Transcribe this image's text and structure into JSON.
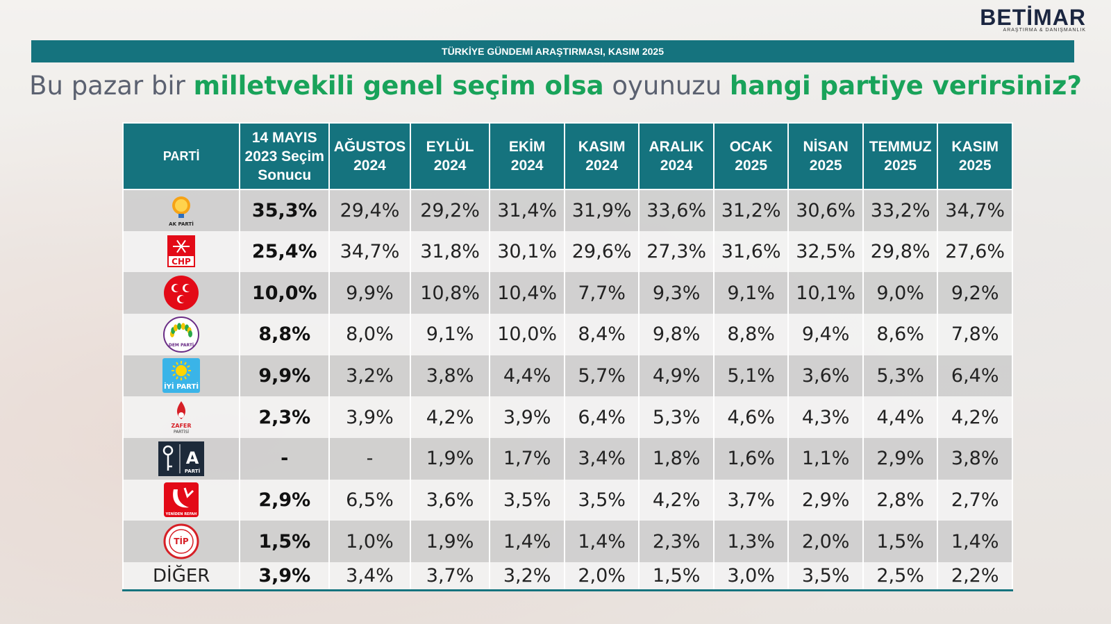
{
  "brand": {
    "name": "BETİMAR",
    "tagline": "ARAŞTIRMA & DANIŞMANLIK"
  },
  "banner": "TÜRKİYE GÜNDEMİ ARAŞTIRMASI, KASIM 2025",
  "question": {
    "p1": "Bu pazar bir ",
    "h1": "milletvekili genel seçim olsa",
    "p2": " oyunuzu ",
    "h2": "hangi partiye verirsiniz?"
  },
  "colors": {
    "header": "#15737e",
    "highlight": "#19a35a",
    "row_dark": "#cecece",
    "row_light": "#f2f2f2"
  },
  "chart_data": {
    "type": "table",
    "headers": [
      "PARTİ",
      "14 MAYIS 2023 Seçim Sonucu",
      "AĞUSTOS 2024",
      "EYLÜL 2024",
      "EKİM 2024",
      "KASIM 2024",
      "ARALIK 2024",
      "OCAK 2025",
      "NİSAN 2025",
      "TEMMUZ 2025",
      "KASIM 2025"
    ],
    "rows": [
      {
        "logo": "akp-logo",
        "logo_text": "AK PARTİ",
        "values": [
          "35,3%",
          "29,4%",
          "29,2%",
          "31,4%",
          "31,9%",
          "33,6%",
          "31,2%",
          "30,6%",
          "33,2%",
          "34,7%"
        ]
      },
      {
        "logo": "chp-logo",
        "logo_text": "CHP",
        "values": [
          "25,4%",
          "34,7%",
          "31,8%",
          "30,1%",
          "29,6%",
          "27,3%",
          "31,6%",
          "32,5%",
          "29,8%",
          "27,6%"
        ]
      },
      {
        "logo": "mhp-logo",
        "values": [
          "10,0%",
          "9,9%",
          "10,8%",
          "10,4%",
          "7,7%",
          "9,3%",
          "9,1%",
          "10,1%",
          "9,0%",
          "9,2%"
        ]
      },
      {
        "logo": "dem-logo",
        "logo_text": "DEM PARTİ",
        "values": [
          "8,8%",
          "8,0%",
          "9,1%",
          "10,0%",
          "8,4%",
          "9,8%",
          "8,8%",
          "9,4%",
          "8,6%",
          "7,8%"
        ]
      },
      {
        "logo": "iyi-logo",
        "logo_text": "İYİ PARTİ",
        "values": [
          "9,9%",
          "3,2%",
          "3,8%",
          "4,4%",
          "5,7%",
          "4,9%",
          "5,1%",
          "3,6%",
          "5,3%",
          "6,4%"
        ]
      },
      {
        "logo": "zafer-logo",
        "logo_text": "ZAFER",
        "logo_text2": "PARTİSİ",
        "values": [
          "2,3%",
          "3,9%",
          "4,2%",
          "3,9%",
          "6,4%",
          "5,3%",
          "4,6%",
          "4,3%",
          "4,4%",
          "4,2%"
        ]
      },
      {
        "logo": "a-parti-logo",
        "logo_text": "A",
        "logo_text2": "PARTİ",
        "values": [
          "-",
          "-",
          "1,9%",
          "1,7%",
          "3,4%",
          "1,8%",
          "1,6%",
          "1,1%",
          "2,9%",
          "3,8%"
        ]
      },
      {
        "logo": "yeniden-refah-logo",
        "logo_text": "YENİDEN REFAH",
        "values": [
          "2,9%",
          "6,5%",
          "3,6%",
          "3,5%",
          "3,5%",
          "4,2%",
          "3,7%",
          "2,9%",
          "2,8%",
          "2,7%"
        ]
      },
      {
        "logo": "tip-logo",
        "logo_text": "TİP",
        "values": [
          "1,5%",
          "1,0%",
          "1,9%",
          "1,4%",
          "1,4%",
          "2,3%",
          "1,3%",
          "2,0%",
          "1,5%",
          "1,4%"
        ]
      },
      {
        "label": "DİĞER",
        "values": [
          "3,9%",
          "3,4%",
          "3,7%",
          "3,2%",
          "2,0%",
          "1,5%",
          "3,0%",
          "3,5%",
          "2,5%",
          "2,2%"
        ]
      }
    ]
  }
}
